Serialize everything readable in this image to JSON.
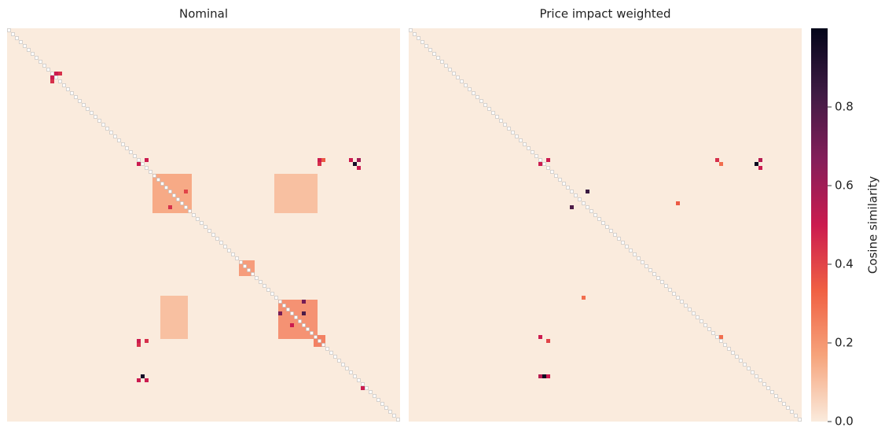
{
  "chart_data": [
    {
      "type": "heatmap",
      "title": "Nominal",
      "shape": [
        100,
        100
      ],
      "blocks": [
        {
          "rows": [
            37,
            46
          ],
          "cols": [
            37,
            46
          ],
          "value": 0.18
        },
        {
          "rows": [
            69,
            78
          ],
          "cols": [
            69,
            78
          ],
          "value": 0.25
        },
        {
          "rows": [
            37,
            46
          ],
          "cols": [
            68,
            78
          ],
          "value": 0.12
        },
        {
          "rows": [
            68,
            78
          ],
          "cols": [
            39,
            45
          ],
          "value": 0.12
        },
        {
          "rows": [
            59,
            62
          ],
          "cols": [
            59,
            62
          ],
          "value": 0.22
        },
        {
          "rows": [
            78,
            80
          ],
          "cols": [
            78,
            80
          ],
          "value": 0.3
        }
      ],
      "cells": [
        {
          "row": 11,
          "col": 12,
          "value": 0.5
        },
        {
          "row": 11,
          "col": 13,
          "value": 0.45
        },
        {
          "row": 12,
          "col": 11,
          "value": 0.5
        },
        {
          "row": 13,
          "col": 11,
          "value": 0.45
        },
        {
          "row": 33,
          "col": 35,
          "value": 0.5
        },
        {
          "row": 34,
          "col": 33,
          "value": 0.5
        },
        {
          "row": 33,
          "col": 79,
          "value": 0.5
        },
        {
          "row": 33,
          "col": 80,
          "value": 0.35
        },
        {
          "row": 34,
          "col": 79,
          "value": 0.45
        },
        {
          "row": 33,
          "col": 87,
          "value": 0.5
        },
        {
          "row": 34,
          "col": 88,
          "value": 0.95
        },
        {
          "row": 33,
          "col": 89,
          "value": 0.6
        },
        {
          "row": 35,
          "col": 89,
          "value": 0.5
        },
        {
          "row": 45,
          "col": 41,
          "value": 0.45
        },
        {
          "row": 41,
          "col": 45,
          "value": 0.4
        },
        {
          "row": 72,
          "col": 75,
          "value": 0.8
        },
        {
          "row": 69,
          "col": 75,
          "value": 0.7
        },
        {
          "row": 72,
          "col": 69,
          "value": 0.7
        },
        {
          "row": 75,
          "col": 72,
          "value": 0.5
        },
        {
          "row": 79,
          "col": 33,
          "value": 0.5
        },
        {
          "row": 79,
          "col": 35,
          "value": 0.45
        },
        {
          "row": 80,
          "col": 33,
          "value": 0.45
        },
        {
          "row": 88,
          "col": 34,
          "value": 0.95
        },
        {
          "row": 89,
          "col": 33,
          "value": 0.5
        },
        {
          "row": 89,
          "col": 35,
          "value": 0.5
        },
        {
          "row": 91,
          "col": 90,
          "value": 0.5
        }
      ]
    },
    {
      "type": "heatmap",
      "title": "Price impact weighted",
      "shape": [
        100,
        100
      ],
      "blocks": [],
      "cells": [
        {
          "row": 33,
          "col": 35,
          "value": 0.5
        },
        {
          "row": 34,
          "col": 33,
          "value": 0.5
        },
        {
          "row": 33,
          "col": 78,
          "value": 0.45
        },
        {
          "row": 34,
          "col": 79,
          "value": 0.3
        },
        {
          "row": 33,
          "col": 89,
          "value": 0.55
        },
        {
          "row": 34,
          "col": 88,
          "value": 0.98
        },
        {
          "row": 35,
          "col": 89,
          "value": 0.5
        },
        {
          "row": 41,
          "col": 45,
          "value": 0.85
        },
        {
          "row": 45,
          "col": 41,
          "value": 0.8
        },
        {
          "row": 44,
          "col": 68,
          "value": 0.35
        },
        {
          "row": 68,
          "col": 44,
          "value": 0.3
        },
        {
          "row": 78,
          "col": 33,
          "value": 0.5
        },
        {
          "row": 79,
          "col": 35,
          "value": 0.4
        },
        {
          "row": 78,
          "col": 79,
          "value": 0.3
        },
        {
          "row": 88,
          "col": 34,
          "value": 0.98
        },
        {
          "row": 88,
          "col": 33,
          "value": 0.55
        },
        {
          "row": 88,
          "col": 35,
          "value": 0.5
        }
      ]
    },
    {
      "type": "colorbar",
      "label": "Cosine similarity",
      "ylim": [
        0,
        1.0
      ],
      "yticks": [
        {
          "value": 0,
          "label": "0.0"
        },
        {
          "value": 0.2,
          "label": "0.2"
        },
        {
          "value": 0.4,
          "label": "0.4"
        },
        {
          "value": 0.6,
          "label": "0.6"
        },
        {
          "value": 0.8,
          "label": "0.8"
        }
      ],
      "colorscale": [
        "#faebdd",
        "#f6a47c",
        "#f06043",
        "#cb1b4f",
        "#841e5a",
        "#3f1b44",
        "#03051a"
      ]
    }
  ]
}
